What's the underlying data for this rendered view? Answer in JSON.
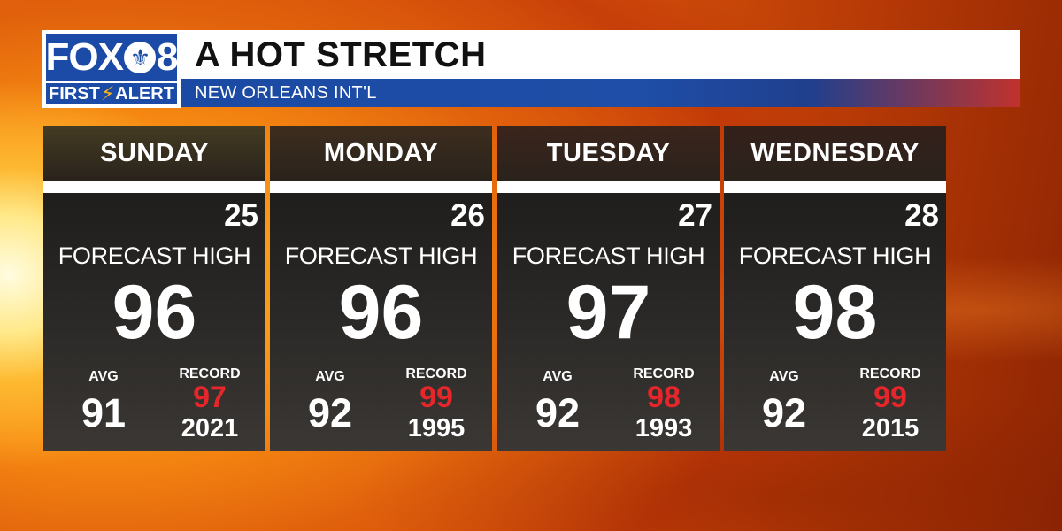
{
  "logo": {
    "brand_left": "FOX",
    "brand_right": "8",
    "emblem_icon": "fleur-de-lis-icon",
    "tagline_left": "FIRST",
    "tagline_right": "ALERT",
    "bolt_icon": "lightning-bolt-icon"
  },
  "header": {
    "title": "A HOT STRETCH",
    "subtitle": "NEW ORLEANS INT'L"
  },
  "colors": {
    "brand_blue": "#1b4ba6",
    "record_red": "#e5262a",
    "bolt_gold": "#f6b21b"
  },
  "days": [
    {
      "day": "SUNDAY",
      "date": "25",
      "forecast_label": "FORECAST HIGH",
      "forecast_high": "96",
      "avg_label": "AVG",
      "avg": "91",
      "record_label": "RECORD",
      "record": "97",
      "record_year": "2021",
      "head_color": "#433b22"
    },
    {
      "day": "MONDAY",
      "date": "26",
      "forecast_label": "FORECAST HIGH",
      "forecast_high": "96",
      "avg_label": "AVG",
      "avg": "92",
      "record_label": "RECORD",
      "record": "99",
      "record_year": "1995",
      "head_color": "#3d2d1e"
    },
    {
      "day": "TUESDAY",
      "date": "27",
      "forecast_label": "FORECAST HIGH",
      "forecast_high": "97",
      "avg_label": "AVG",
      "avg": "92",
      "record_label": "RECORD",
      "record": "98",
      "record_year": "1993",
      "head_color": "#3b241c"
    },
    {
      "day": "WEDNESDAY",
      "date": "28",
      "forecast_label": "FORECAST HIGH",
      "forecast_high": "98",
      "avg_label": "AVG",
      "avg": "92",
      "record_label": "RECORD",
      "record": "99",
      "record_year": "2015",
      "head_color": "#35201b"
    }
  ]
}
